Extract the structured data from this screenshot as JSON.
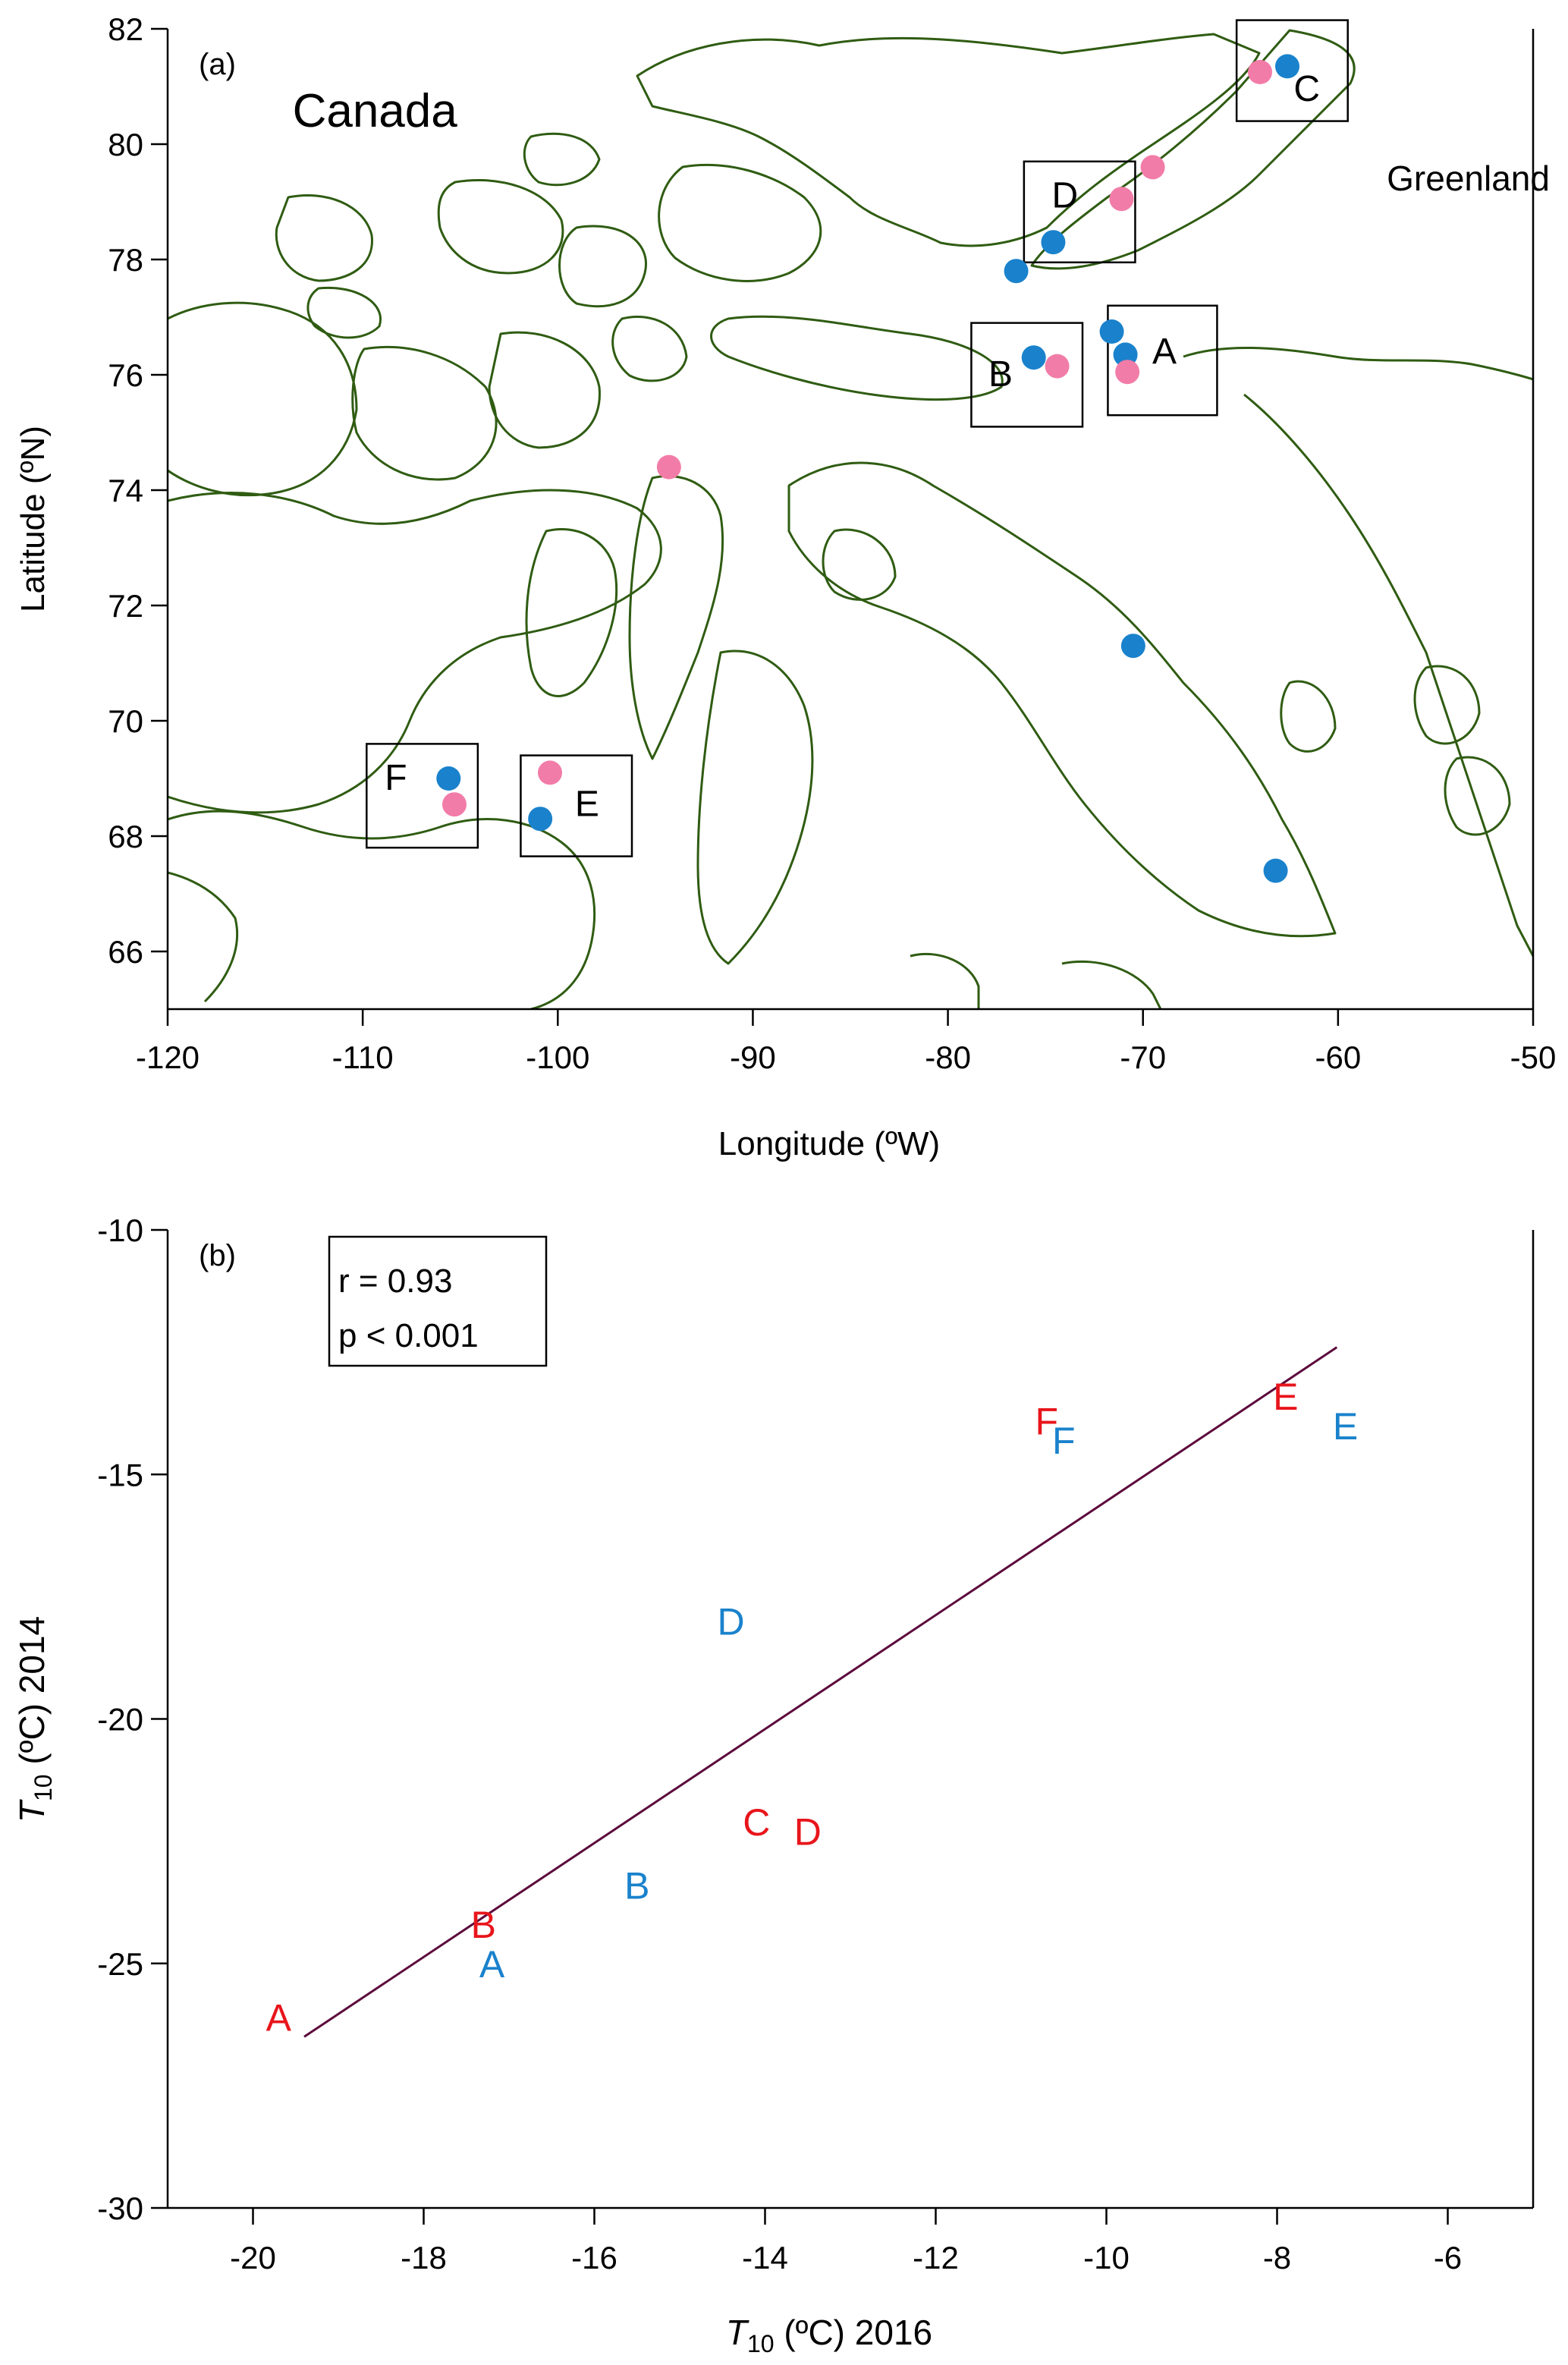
{
  "colors": {
    "coast": "#2f5c12",
    "blue": "#1a82cc",
    "pink": "#f27ca8",
    "red": "#e8151b",
    "fit_line": "#5c0a3c",
    "axis": "#000000"
  },
  "chart_data": [
    {
      "type": "scatter",
      "panel_label": "(a)",
      "xlabel": "Longitude (ºW)",
      "ylabel": "Latitude (ºN)",
      "xlim": [
        -120,
        -50
      ],
      "ylim": [
        65,
        82
      ],
      "xticks": [
        "-120",
        "-110",
        "-100",
        "-90",
        "-80",
        "-70",
        "-60",
        "-50"
      ],
      "yticks": [
        "66",
        "68",
        "70",
        "72",
        "74",
        "76",
        "78",
        "80",
        "82"
      ],
      "region_labels": [
        {
          "text": "Canada",
          "x": -113.6,
          "y": 80.3
        },
        {
          "text": "Greenland",
          "x": -57.5,
          "y": 79.2
        }
      ],
      "series": [
        {
          "color": "blue",
          "points": [
            {
              "x": -62.6,
              "y": 81.35
            },
            {
              "x": -74.6,
              "y": 78.3
            },
            {
              "x": -76.5,
              "y": 77.8
            },
            {
              "x": -71.6,
              "y": 76.75
            },
            {
              "x": -70.9,
              "y": 76.35
            },
            {
              "x": -75.6,
              "y": 76.3
            },
            {
              "x": -70.5,
              "y": 71.3
            },
            {
              "x": -63.2,
              "y": 67.4
            },
            {
              "x": -105.6,
              "y": 69.0
            },
            {
              "x": -100.9,
              "y": 68.3
            }
          ]
        },
        {
          "color": "pink",
          "points": [
            {
              "x": -64.0,
              "y": 81.25
            },
            {
              "x": -69.5,
              "y": 79.6
            },
            {
              "x": -71.1,
              "y": 79.05
            },
            {
              "x": -74.4,
              "y": 76.15
            },
            {
              "x": -70.8,
              "y": 76.05
            },
            {
              "x": -94.3,
              "y": 74.4
            },
            {
              "x": -100.4,
              "y": 69.1
            },
            {
              "x": -105.3,
              "y": 68.55
            }
          ]
        }
      ],
      "site_boxes": [
        {
          "label": "A",
          "x0": -71.8,
          "x1": -66.2,
          "y0": 75.3,
          "y1": 77.2
        },
        {
          "label": "B",
          "x0": -78.8,
          "x1": -73.1,
          "y0": 75.1,
          "y1": 76.9
        },
        {
          "label": "C",
          "x0": -65.2,
          "x1": -59.5,
          "y0": 80.4,
          "y1": 82.15
        },
        {
          "label": "D",
          "x0": -76.1,
          "x1": -70.4,
          "y0": 77.95,
          "y1": 79.7
        },
        {
          "label": "E",
          "x0": -101.9,
          "x1": -96.2,
          "y0": 67.65,
          "y1": 69.4
        },
        {
          "label": "F",
          "x0": -109.8,
          "x1": -104.1,
          "y0": 67.8,
          "y1": 69.6
        }
      ],
      "site_labels": [
        {
          "text": "A",
          "x": -68.9,
          "y": 76.2
        },
        {
          "text": "B",
          "x": -77.3,
          "y": 75.8
        },
        {
          "text": "C",
          "x": -61.6,
          "y": 80.75
        },
        {
          "text": "D",
          "x": -74.0,
          "y": 78.9
        },
        {
          "text": "E",
          "x": -98.5,
          "y": 68.35
        },
        {
          "text": "F",
          "x": -108.3,
          "y": 68.8
        }
      ]
    },
    {
      "type": "scatter",
      "panel_label": "(b)",
      "xlabel_var": "T",
      "xlabel_sub": "10",
      "xlabel_rest": " (ºC) 2016",
      "ylabel_var": "T",
      "ylabel_sub": "10",
      "ylabel_rest": " (ºC) 2014",
      "xlim": [
        -21,
        -5
      ],
      "ylim": [
        -30,
        -10
      ],
      "xticks": [
        "-20",
        "-18",
        "-16",
        "-14",
        "-12",
        "-10",
        "-8",
        "-6"
      ],
      "yticks": [
        "-10",
        "-15",
        "-20",
        "-25",
        "-30"
      ],
      "stats": {
        "r": "r = 0.93",
        "p": "p < 0.001"
      },
      "fit_line": {
        "x": [
          -19.4,
          -7.3
        ],
        "y": [
          -26.5,
          -12.4
        ]
      },
      "series": [
        {
          "color": "red",
          "points": [
            {
              "label": "A",
              "x": -19.7,
              "y": -26.1
            },
            {
              "label": "B",
              "x": -17.3,
              "y": -24.2
            },
            {
              "label": "C",
              "x": -14.1,
              "y": -22.1
            },
            {
              "label": "D",
              "x": -13.5,
              "y": -22.3
            },
            {
              "label": "E",
              "x": -7.9,
              "y": -13.4
            },
            {
              "label": "F",
              "x": -10.7,
              "y": -13.9
            }
          ]
        },
        {
          "color": "blue",
          "points": [
            {
              "label": "A",
              "x": -17.2,
              "y": -25.0
            },
            {
              "label": "B",
              "x": -15.5,
              "y": -23.4
            },
            {
              "label": "D",
              "x": -14.4,
              "y": -18.0
            },
            {
              "label": "E",
              "x": -7.2,
              "y": -14.0
            },
            {
              "label": "F",
              "x": -10.5,
              "y": -14.3
            }
          ]
        }
      ]
    }
  ]
}
